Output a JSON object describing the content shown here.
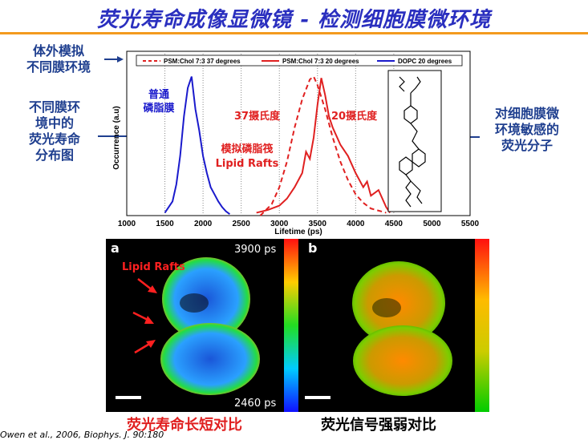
{
  "title": "荧光寿命成像显微镜 - 检测细胞膜微环境",
  "notes": {
    "in_vitro": "体外模拟\n不同膜环境",
    "distribution": "不同膜环\n境中的\n荧光寿命\n分布图",
    "probe": "对细胞膜微\n环境敏感的\n荧光分子"
  },
  "plot_labels": {
    "normal": "普通\n磷脂膜",
    "raft_sim": "模拟磷脂筏\nLipid Rafts",
    "deg37": "37摄氏度",
    "deg20": "20摄氏度"
  },
  "micrograph": {
    "panel_a": "a",
    "panel_b": "b",
    "top_scale": "3900 ps",
    "bottom_scale": "2460 ps",
    "rafts_label": "Lipid Rafts"
  },
  "captions": {
    "left": "荧光寿命长短对比",
    "right": "荧光信号强弱对比"
  },
  "citation": "Owen et al., 2006, Biophys. J. 90:180",
  "chart_data": {
    "type": "line",
    "xlabel": "Lifetime (ps)",
    "ylabel": "Occurrence (a.u)",
    "xlim": [
      1000,
      5500
    ],
    "xticks": [
      1000,
      1500,
      2000,
      2500,
      3000,
      3500,
      4000,
      4500,
      5000,
      5500
    ],
    "grid_x": [
      1500,
      2000,
      2500,
      3000,
      3500,
      4000,
      4500
    ],
    "legend_position": "top",
    "series": [
      {
        "name": "PSM:Chol 7:3 37 degrees",
        "color": "#e02020",
        "dash": true,
        "x": [
          2750,
          2900,
          3000,
          3100,
          3200,
          3300,
          3400,
          3450,
          3500,
          3600,
          3700,
          3800,
          3900,
          4000,
          4100,
          4200,
          4400
        ],
        "y": [
          0.0,
          0.08,
          0.2,
          0.38,
          0.62,
          0.82,
          0.96,
          0.98,
          0.92,
          0.75,
          0.55,
          0.38,
          0.25,
          0.15,
          0.09,
          0.05,
          0.02
        ]
      },
      {
        "name": "PSM:Chol 7:3 20 degrees",
        "color": "#e02020",
        "dash": false,
        "x": [
          2700,
          2850,
          3000,
          3100,
          3200,
          3300,
          3350,
          3400,
          3450,
          3500,
          3550,
          3600,
          3650,
          3700,
          3800,
          3900,
          4000,
          4100,
          4150,
          4200,
          4300,
          4400,
          4450
        ],
        "y": [
          0.02,
          0.04,
          0.07,
          0.12,
          0.2,
          0.3,
          0.45,
          0.4,
          0.55,
          0.78,
          0.97,
          0.85,
          0.7,
          0.62,
          0.5,
          0.42,
          0.3,
          0.2,
          0.24,
          0.14,
          0.18,
          0.06,
          0.02
        ]
      },
      {
        "name": "DOPC 20 degrees",
        "color": "#1a1acc",
        "dash": false,
        "x": [
          1500,
          1600,
          1650,
          1700,
          1750,
          1800,
          1850,
          1900,
          1950,
          2000,
          2050,
          2100,
          2150,
          2200,
          2250,
          2300,
          2350
        ],
        "y": [
          0.02,
          0.1,
          0.22,
          0.42,
          0.7,
          0.9,
          0.98,
          0.75,
          0.6,
          0.42,
          0.3,
          0.2,
          0.15,
          0.1,
          0.06,
          0.03,
          0.01
        ]
      }
    ]
  }
}
